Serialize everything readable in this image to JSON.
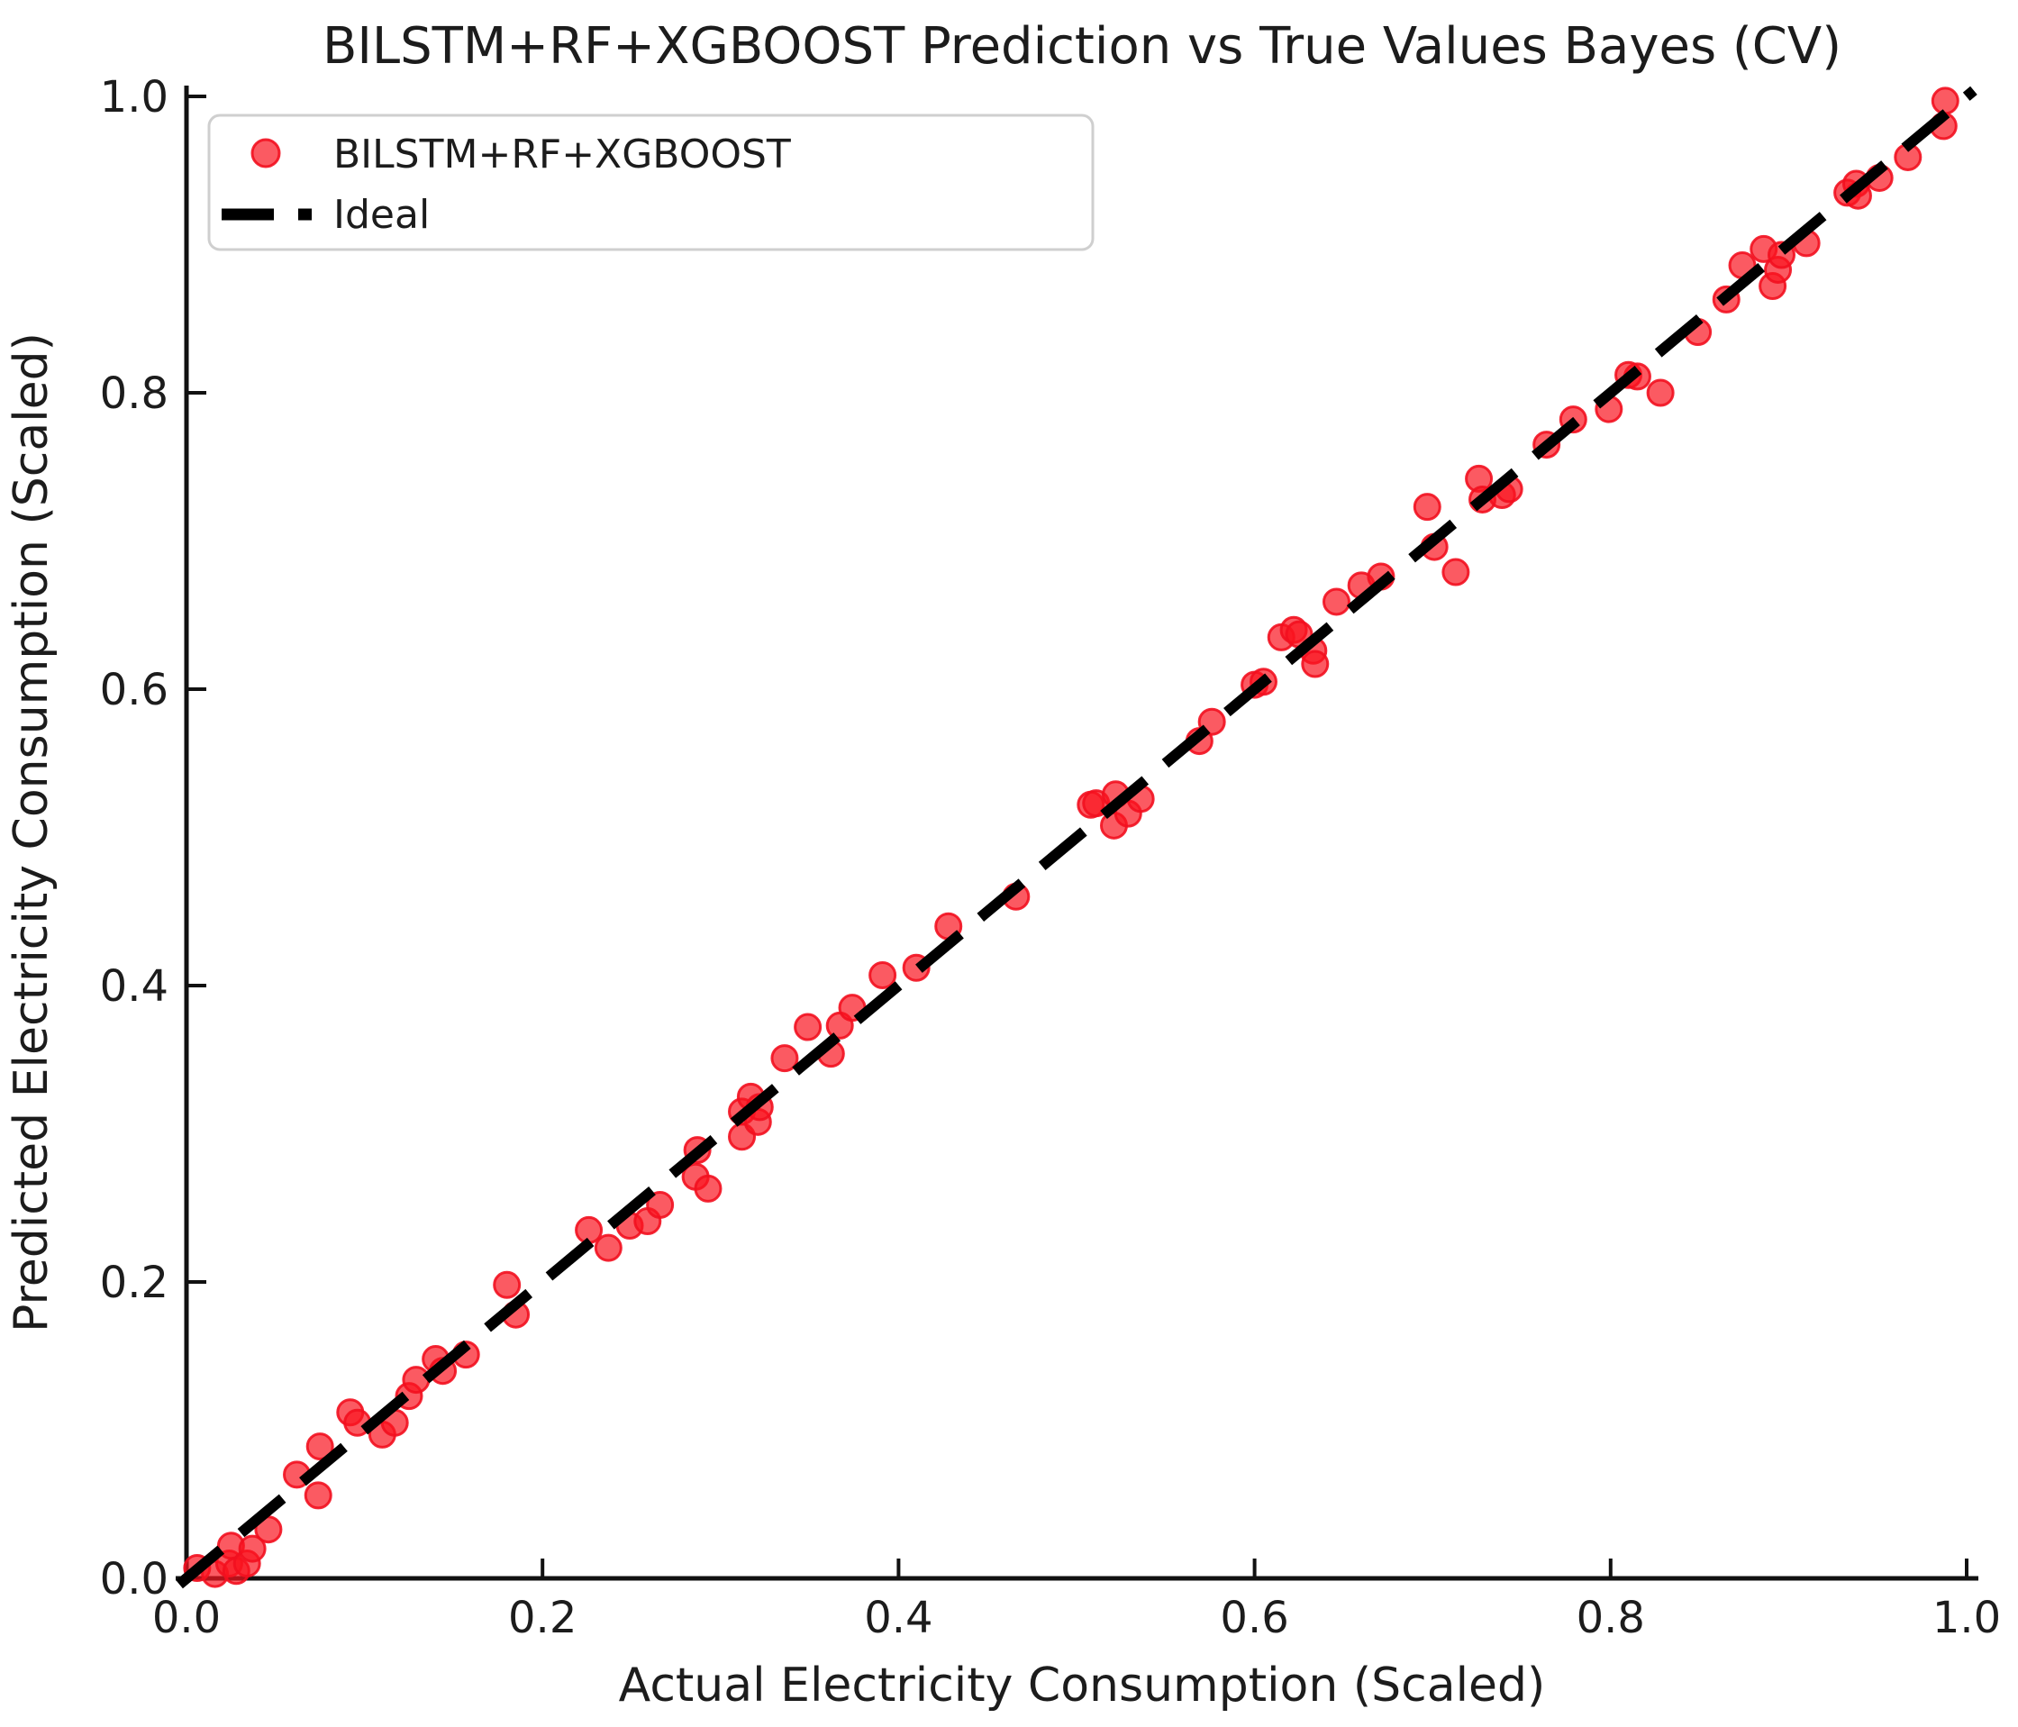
{
  "chart": {
    "title": "BILSTM+RF+XGBOOST Prediction vs True Values Bayes (CV)",
    "xlabel": "Actual Electricity Consumption (Scaled)",
    "ylabel": "Predicted Electricity Consumption (Scaled)",
    "legend": {
      "series_label": "BILSTM+RF+XGBOOST",
      "ideal_label": "Ideal"
    },
    "colors": {
      "marker_fill": "#fa1420",
      "marker_edge": "#f2101f",
      "ideal_line": "#000000",
      "legend_border": "#cfcfcf",
      "text": "#1c1c1c"
    }
  },
  "chart_data": {
    "type": "scatter",
    "title": "BILSTM+RF+XGBOOST Prediction vs True Values Bayes (CV)",
    "xlabel": "Actual Electricity Consumption (Scaled)",
    "ylabel": "Predicted Electricity Consumption (Scaled)",
    "xlim": [
      0.0,
      1.0
    ],
    "ylim": [
      0.0,
      1.0
    ],
    "x_ticks": [
      0.0,
      0.2,
      0.4,
      0.6,
      0.8,
      1.0
    ],
    "y_ticks": [
      0.0,
      0.2,
      0.4,
      0.6,
      0.8,
      1.0
    ],
    "grid": false,
    "legend_position": "upper left",
    "series": [
      {
        "name": "BILSTM+RF+XGBOOST",
        "marker": "circle",
        "color": "#fa1420",
        "alpha": 0.7,
        "points": [
          [
            0.006,
            0.007
          ],
          [
            0.016,
            0.003
          ],
          [
            0.024,
            0.01
          ],
          [
            0.025,
            0.022
          ],
          [
            0.028,
            0.005
          ],
          [
            0.034,
            0.01
          ],
          [
            0.037,
            0.02
          ],
          [
            0.046,
            0.033
          ],
          [
            0.062,
            0.07
          ],
          [
            0.074,
            0.056
          ],
          [
            0.075,
            0.089
          ],
          [
            0.092,
            0.112
          ],
          [
            0.096,
            0.105
          ],
          [
            0.11,
            0.097
          ],
          [
            0.117,
            0.105
          ],
          [
            0.125,
            0.123
          ],
          [
            0.129,
            0.134
          ],
          [
            0.14,
            0.148
          ],
          [
            0.144,
            0.14
          ],
          [
            0.157,
            0.151
          ],
          [
            0.18,
            0.198
          ],
          [
            0.185,
            0.178
          ],
          [
            0.226,
            0.235
          ],
          [
            0.237,
            0.223
          ],
          [
            0.249,
            0.238
          ],
          [
            0.259,
            0.241
          ],
          [
            0.266,
            0.252
          ],
          [
            0.286,
            0.271
          ],
          [
            0.287,
            0.289
          ],
          [
            0.293,
            0.263
          ],
          [
            0.312,
            0.315
          ],
          [
            0.312,
            0.298
          ],
          [
            0.317,
            0.325
          ],
          [
            0.321,
            0.308
          ],
          [
            0.322,
            0.318
          ],
          [
            0.336,
            0.351
          ],
          [
            0.349,
            0.372
          ],
          [
            0.362,
            0.354
          ],
          [
            0.367,
            0.373
          ],
          [
            0.374,
            0.385
          ],
          [
            0.391,
            0.407
          ],
          [
            0.41,
            0.412
          ],
          [
            0.428,
            0.44
          ],
          [
            0.466,
            0.46
          ],
          [
            0.508,
            0.522
          ],
          [
            0.511,
            0.523
          ],
          [
            0.521,
            0.508
          ],
          [
            0.522,
            0.529
          ],
          [
            0.529,
            0.516
          ],
          [
            0.536,
            0.526
          ],
          [
            0.569,
            0.565
          ],
          [
            0.576,
            0.578
          ],
          [
            0.6,
            0.603
          ],
          [
            0.605,
            0.605
          ],
          [
            0.615,
            0.635
          ],
          [
            0.622,
            0.64
          ],
          [
            0.625,
            0.637
          ],
          [
            0.633,
            0.626
          ],
          [
            0.634,
            0.617
          ],
          [
            0.646,
            0.659
          ],
          [
            0.66,
            0.67
          ],
          [
            0.671,
            0.676
          ],
          [
            0.697,
            0.723
          ],
          [
            0.701,
            0.696
          ],
          [
            0.713,
            0.679
          ],
          [
            0.726,
            0.742
          ],
          [
            0.728,
            0.728
          ],
          [
            0.739,
            0.731
          ],
          [
            0.743,
            0.735
          ],
          [
            0.764,
            0.765
          ],
          [
            0.779,
            0.782
          ],
          [
            0.799,
            0.789
          ],
          [
            0.81,
            0.812
          ],
          [
            0.815,
            0.811
          ],
          [
            0.828,
            0.8
          ],
          [
            0.849,
            0.841
          ],
          [
            0.865,
            0.863
          ],
          [
            0.874,
            0.886
          ],
          [
            0.886,
            0.897
          ],
          [
            0.891,
            0.872
          ],
          [
            0.894,
            0.883
          ],
          [
            0.896,
            0.893
          ],
          [
            0.91,
            0.901
          ],
          [
            0.933,
            0.935
          ],
          [
            0.938,
            0.941
          ],
          [
            0.939,
            0.933
          ],
          [
            0.951,
            0.945
          ],
          [
            0.967,
            0.959
          ],
          [
            0.987,
            0.98
          ],
          [
            0.988,
            0.997
          ]
        ]
      }
    ],
    "ideal_line": {
      "label": "Ideal",
      "from": [
        0.0,
        0.0
      ],
      "to": [
        1.0,
        1.0
      ],
      "style": "dashed",
      "color": "#000000"
    }
  }
}
